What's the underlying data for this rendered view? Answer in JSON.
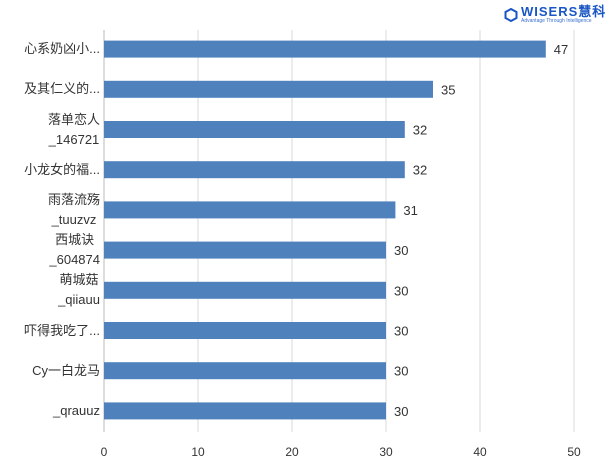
{
  "logo": {
    "brand": "WISERS慧科",
    "tagline": "Advantage Through Intelligence"
  },
  "chart_data": {
    "type": "bar",
    "orientation": "horizontal",
    "categories": [
      "心系奶凶小...",
      "及其仁义的...",
      "落单恋人\n_146721",
      "小龙女的福...",
      "雨落流殇\n_tuuzvz",
      "西城诀\n_604874",
      "萌城菇\n_qiiauu",
      "吓得我吃了...",
      "Cy一白龙马",
      "_qrauuz"
    ],
    "values": [
      47,
      35,
      32,
      32,
      31,
      30,
      30,
      30,
      30,
      30
    ],
    "xlim": [
      0,
      50
    ],
    "xticks": [
      "0",
      "10",
      "20",
      "30",
      "40",
      "50"
    ],
    "grid": true,
    "bar_color": "#4f81bd",
    "data_labels": true
  }
}
